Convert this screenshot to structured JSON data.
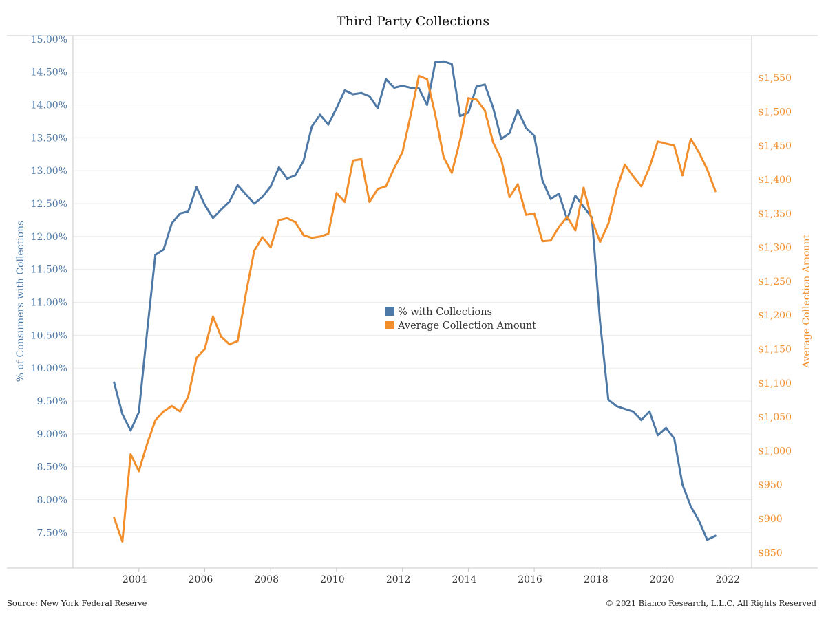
{
  "colors": {
    "left_series": "#4e79a7",
    "right_series": "#f28e2b",
    "grid": "#ececec",
    "axis_line": "#c8c8c8"
  },
  "footer": {
    "source": "Source: New York Federal Reserve",
    "copyright": "© 2021 Bianco Research, L.L.C. All Rights Reserved"
  },
  "chart_data": {
    "type": "line",
    "title": "Third Party Collections",
    "xlabel": "",
    "ylabel": "% of Consumers with Collections",
    "y2label": "Average Collection Amount",
    "grid": true,
    "legend_position": "center",
    "xlim": [
      2002.0,
      2022.6
    ],
    "ylim": [
      6.96,
      15.05
    ],
    "y2lim": [
      827,
      1612
    ],
    "x_ticks": [
      {
        "value": 2004,
        "label": "2004"
      },
      {
        "value": 2006,
        "label": "2006"
      },
      {
        "value": 2008,
        "label": "2008"
      },
      {
        "value": 2010,
        "label": "2010"
      },
      {
        "value": 2012,
        "label": "2012"
      },
      {
        "value": 2014,
        "label": "2014"
      },
      {
        "value": 2016,
        "label": "2016"
      },
      {
        "value": 2018,
        "label": "2018"
      },
      {
        "value": 2020,
        "label": "2020"
      },
      {
        "value": 2022,
        "label": "2022"
      }
    ],
    "y_ticks": [
      {
        "value": 15.0,
        "label": "15.00%"
      },
      {
        "value": 14.5,
        "label": "14.50%"
      },
      {
        "value": 14.0,
        "label": "14.00%"
      },
      {
        "value": 13.5,
        "label": "13.50%"
      },
      {
        "value": 13.0,
        "label": "13.00%"
      },
      {
        "value": 12.5,
        "label": "12.50%"
      },
      {
        "value": 12.0,
        "label": "12.00%"
      },
      {
        "value": 11.5,
        "label": "11.50%"
      },
      {
        "value": 11.0,
        "label": "11.00%"
      },
      {
        "value": 10.5,
        "label": "10.50%"
      },
      {
        "value": 10.0,
        "label": "10.00%"
      },
      {
        "value": 9.5,
        "label": "9.50%"
      },
      {
        "value": 9.0,
        "label": "9.00%"
      },
      {
        "value": 8.5,
        "label": "8.50%"
      },
      {
        "value": 8.0,
        "label": "8.00%"
      },
      {
        "value": 7.5,
        "label": "7.50%"
      }
    ],
    "y2_ticks": [
      {
        "value": 1550,
        "label": "$1,550"
      },
      {
        "value": 1500,
        "label": "$1,500"
      },
      {
        "value": 1450,
        "label": "$1,450"
      },
      {
        "value": 1400,
        "label": "$1,400"
      },
      {
        "value": 1350,
        "label": "$1,350"
      },
      {
        "value": 1300,
        "label": "$1,300"
      },
      {
        "value": 1250,
        "label": "$1,250"
      },
      {
        "value": 1200,
        "label": "$1,200"
      },
      {
        "value": 1150,
        "label": "$1,150"
      },
      {
        "value": 1100,
        "label": "$1,100"
      },
      {
        "value": 1050,
        "label": "$1,050"
      },
      {
        "value": 1000,
        "label": "$1,000"
      },
      {
        "value": 950,
        "label": "$950"
      },
      {
        "value": 900,
        "label": "$900"
      },
      {
        "value": 850,
        "label": "$850"
      }
    ],
    "series": [
      {
        "name": "% with Collections",
        "axis": "left",
        "color": "#4e79a7",
        "x": [
          2003.25,
          2003.5,
          2003.75,
          2004.0,
          2004.25,
          2004.5,
          2004.75,
          2005.0,
          2005.25,
          2005.5,
          2005.75,
          2006.0,
          2006.25,
          2006.5,
          2006.75,
          2007.0,
          2007.25,
          2007.5,
          2007.75,
          2008.0,
          2008.25,
          2008.5,
          2008.75,
          2009.0,
          2009.25,
          2009.5,
          2009.75,
          2010.0,
          2010.25,
          2010.5,
          2010.75,
          2011.0,
          2011.25,
          2011.5,
          2011.75,
          2012.0,
          2012.25,
          2012.5,
          2012.75,
          2013.0,
          2013.25,
          2013.5,
          2013.75,
          2014.0,
          2014.25,
          2014.5,
          2014.75,
          2015.0,
          2015.25,
          2015.5,
          2015.75,
          2016.0,
          2016.25,
          2016.5,
          2016.75,
          2017.0,
          2017.25,
          2017.5,
          2017.75,
          2018.0,
          2018.25,
          2018.5,
          2018.75,
          2019.0,
          2019.25,
          2019.5,
          2019.75,
          2020.0,
          2020.25,
          2020.5,
          2020.75,
          2021.0,
          2021.25,
          2021.5
        ],
        "values": [
          9.78,
          9.3,
          9.05,
          9.33,
          10.55,
          11.72,
          11.8,
          12.2,
          12.35,
          12.38,
          12.75,
          12.48,
          12.28,
          12.41,
          12.53,
          12.78,
          12.64,
          12.5,
          12.6,
          12.76,
          13.05,
          12.88,
          12.93,
          13.15,
          13.67,
          13.85,
          13.7,
          13.95,
          14.22,
          14.16,
          14.18,
          14.13,
          13.95,
          14.39,
          14.26,
          14.29,
          14.26,
          14.25,
          14.0,
          14.65,
          14.66,
          14.62,
          13.83,
          13.88,
          14.28,
          14.31,
          13.96,
          13.48,
          13.57,
          13.92,
          13.65,
          13.53,
          12.85,
          12.57,
          12.65,
          12.26,
          12.62,
          12.45,
          12.29,
          10.7,
          9.52,
          9.42,
          9.38,
          9.34,
          9.21,
          9.34,
          8.98,
          9.09,
          8.93,
          8.23,
          7.9,
          7.68,
          7.39,
          7.45
        ]
      },
      {
        "name": "Average Collection Amount",
        "axis": "right",
        "color": "#f28e2b",
        "x": [
          2003.25,
          2003.5,
          2003.75,
          2004.0,
          2004.25,
          2004.5,
          2004.75,
          2005.0,
          2005.25,
          2005.5,
          2005.75,
          2006.0,
          2006.25,
          2006.5,
          2006.75,
          2007.0,
          2007.25,
          2007.5,
          2007.75,
          2008.0,
          2008.25,
          2008.5,
          2008.75,
          2009.0,
          2009.25,
          2009.5,
          2009.75,
          2010.0,
          2010.25,
          2010.5,
          2010.75,
          2011.0,
          2011.25,
          2011.5,
          2011.75,
          2012.0,
          2012.25,
          2012.5,
          2012.75,
          2013.0,
          2013.25,
          2013.5,
          2013.75,
          2014.0,
          2014.25,
          2014.5,
          2014.75,
          2015.0,
          2015.25,
          2015.5,
          2015.75,
          2016.0,
          2016.25,
          2016.5,
          2016.75,
          2017.0,
          2017.25,
          2017.5,
          2017.75,
          2018.0,
          2018.25,
          2018.5,
          2018.75,
          2019.0,
          2019.25,
          2019.5,
          2019.75,
          2020.0,
          2020.25,
          2020.5,
          2020.75,
          2021.0,
          2021.25,
          2021.5
        ],
        "values": [
          901,
          866,
          995,
          970,
          1010,
          1045,
          1058,
          1066,
          1058,
          1080,
          1137,
          1150,
          1198,
          1168,
          1157,
          1162,
          1232,
          1295,
          1315,
          1300,
          1340,
          1343,
          1337,
          1318,
          1314,
          1316,
          1320,
          1380,
          1367,
          1428,
          1430,
          1367,
          1386,
          1390,
          1417,
          1440,
          1495,
          1553,
          1548,
          1495,
          1433,
          1410,
          1458,
          1520,
          1518,
          1502,
          1455,
          1430,
          1374,
          1393,
          1348,
          1350,
          1309,
          1310,
          1330,
          1345,
          1325,
          1388,
          1340,
          1308,
          1335,
          1385,
          1422,
          1405,
          1390,
          1418,
          1456,
          1453,
          1450,
          1406,
          1460,
          1440,
          1415,
          1383
        ]
      }
    ]
  }
}
